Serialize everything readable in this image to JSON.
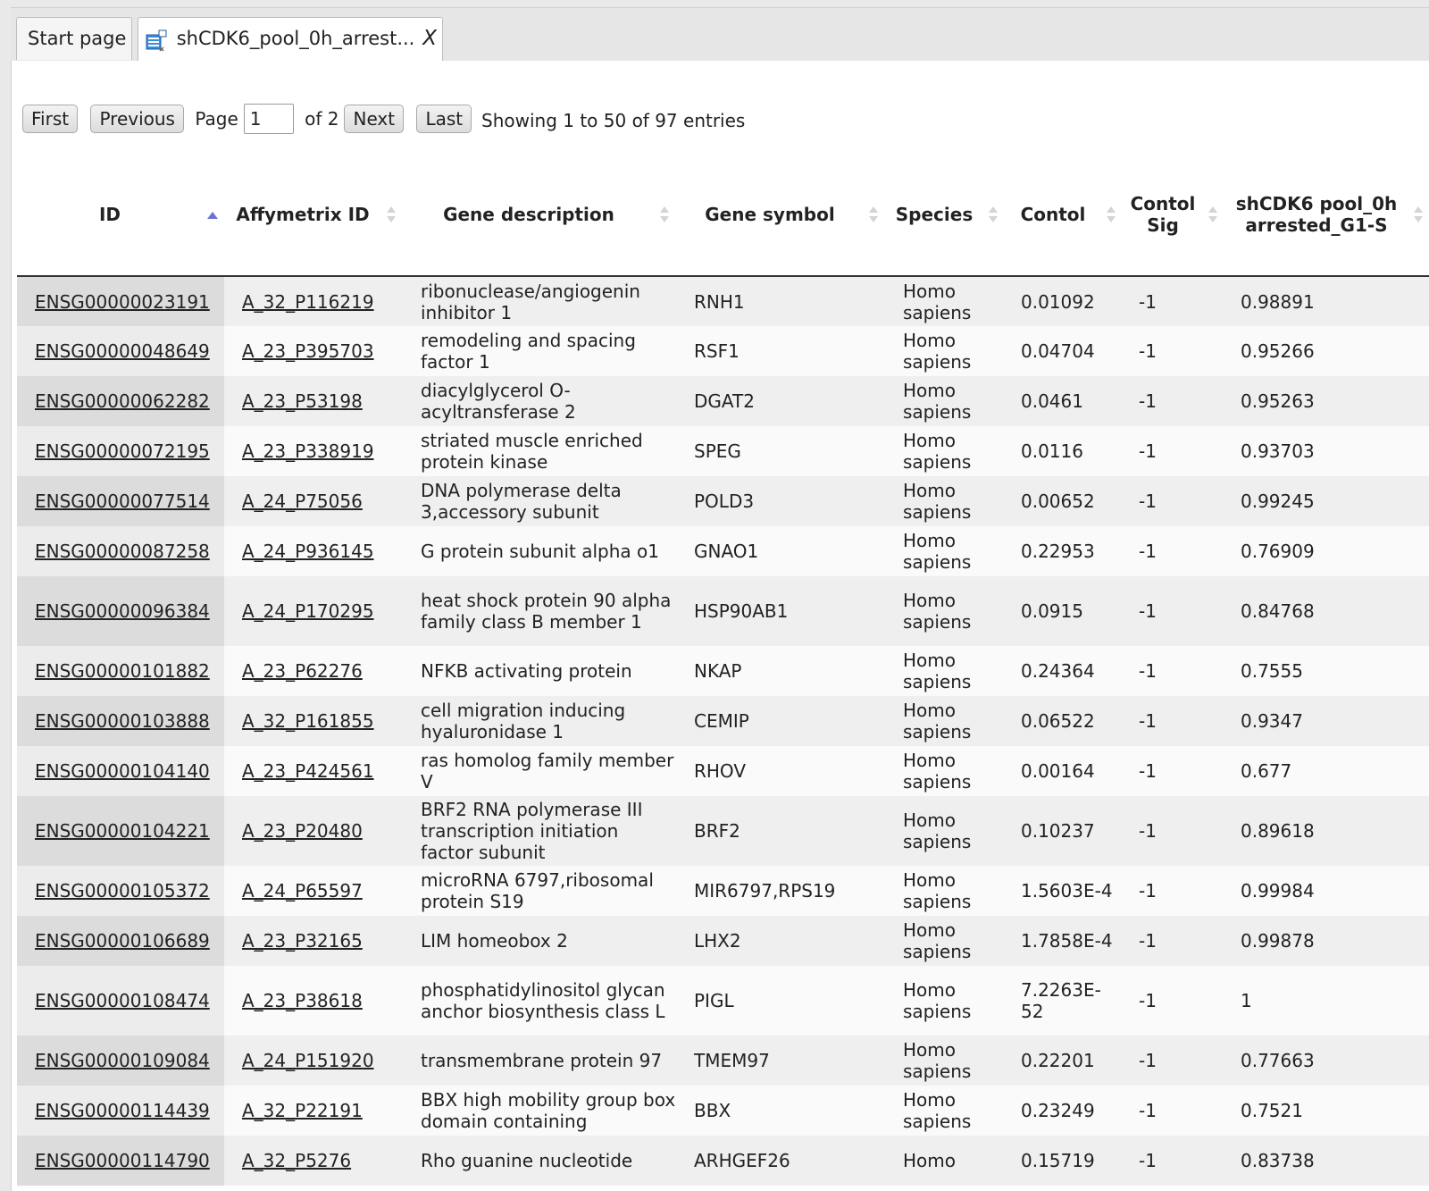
{
  "tabs": [
    {
      "label": "Start page"
    },
    {
      "label": "shCDK6_pool_0h_arrest...",
      "close": "X"
    }
  ],
  "pager": {
    "first": "First",
    "previous": "Previous",
    "page_label": "Page",
    "page_value": "1",
    "of_label": "of 2",
    "next": "Next",
    "last": "Last",
    "showing": "Showing 1 to 50 of 97 entries"
  },
  "columns": [
    {
      "label": "ID",
      "sort": "asc"
    },
    {
      "label": "Affymetrix ID",
      "sort": "none"
    },
    {
      "label": "Gene description",
      "sort": "none"
    },
    {
      "label": "Gene symbol",
      "sort": "none"
    },
    {
      "label": "Species",
      "sort": "none"
    },
    {
      "label": "Contol",
      "sort": "none"
    },
    {
      "label": "Contol Sig",
      "sort": "none"
    },
    {
      "label": "shCDK6 pool_0h arrested_G1-S",
      "sort": "none"
    }
  ],
  "rows": [
    [
      "ENSG00000023191",
      "A_32_P116219",
      "ribonuclease/angiogenin inhibitor 1",
      "RNH1",
      "Homo sapiens",
      "0.01092",
      "-1",
      "0.98891"
    ],
    [
      "ENSG00000048649",
      "A_23_P395703",
      "remodeling and spacing factor 1",
      "RSF1",
      "Homo sapiens",
      "0.04704",
      "-1",
      "0.95266"
    ],
    [
      "ENSG00000062282",
      "A_23_P53198",
      "diacylglycerol O-acyltransferase 2",
      "DGAT2",
      "Homo sapiens",
      "0.0461",
      "-1",
      "0.95263"
    ],
    [
      "ENSG00000072195",
      "A_23_P338919",
      "striated muscle enriched protein kinase",
      "SPEG",
      "Homo sapiens",
      "0.0116",
      "-1",
      "0.93703"
    ],
    [
      "ENSG00000077514",
      "A_24_P75056",
      "DNA polymerase delta 3,accessory subunit",
      "POLD3",
      "Homo sapiens",
      "0.00652",
      "-1",
      "0.99245"
    ],
    [
      "ENSG00000087258",
      "A_24_P936145",
      "G protein subunit alpha o1",
      "GNAO1",
      "Homo sapiens",
      "0.22953",
      "-1",
      "0.76909"
    ],
    [
      "ENSG00000096384",
      "A_24_P170295",
      "heat shock protein 90 alpha family class B member 1",
      "HSP90AB1",
      "Homo sapiens",
      "0.0915",
      "-1",
      "0.84768"
    ],
    [
      "ENSG00000101882",
      "A_23_P62276",
      "NFKB activating protein",
      "NKAP",
      "Homo sapiens",
      "0.24364",
      "-1",
      "0.7555"
    ],
    [
      "ENSG00000103888",
      "A_32_P161855",
      "cell migration inducing hyaluronidase 1",
      "CEMIP",
      "Homo sapiens",
      "0.06522",
      "-1",
      "0.9347"
    ],
    [
      "ENSG00000104140",
      "A_23_P424561",
      "ras homolog family member V",
      "RHOV",
      "Homo sapiens",
      "0.00164",
      "-1",
      "0.677"
    ],
    [
      "ENSG00000104221",
      "A_23_P20480",
      "BRF2 RNA polymerase III transcription initiation factor subunit",
      "BRF2",
      "Homo sapiens",
      "0.10237",
      "-1",
      "0.89618"
    ],
    [
      "ENSG00000105372",
      "A_24_P65597",
      "microRNA 6797,ribosomal protein S19",
      "MIR6797,RPS19",
      "Homo sapiens",
      "1.5603E-4",
      "-1",
      "0.99984"
    ],
    [
      "ENSG00000106689",
      "A_23_P32165",
      "LIM homeobox 2",
      "LHX2",
      "Homo sapiens",
      "1.7858E-4",
      "-1",
      "0.99878"
    ],
    [
      "ENSG00000108474",
      "A_23_P38618",
      "phosphatidylinositol glycan anchor biosynthesis class L",
      "PIGL",
      "Homo sapiens",
      "7.2263E-52",
      "-1",
      "1"
    ],
    [
      "ENSG00000109084",
      "A_24_P151920",
      "transmembrane protein 97",
      "TMEM97",
      "Homo sapiens",
      "0.22201",
      "-1",
      "0.77663"
    ],
    [
      "ENSG00000114439",
      "A_32_P22191",
      "BBX high mobility group box domain containing",
      "BBX",
      "Homo sapiens",
      "0.23249",
      "-1",
      "0.7521"
    ],
    [
      "ENSG00000114790",
      "A_32_P5276",
      "Rho guanine nucleotide",
      "ARHGEF26",
      "Homo",
      "0.15719",
      "-1",
      "0.83738"
    ]
  ]
}
